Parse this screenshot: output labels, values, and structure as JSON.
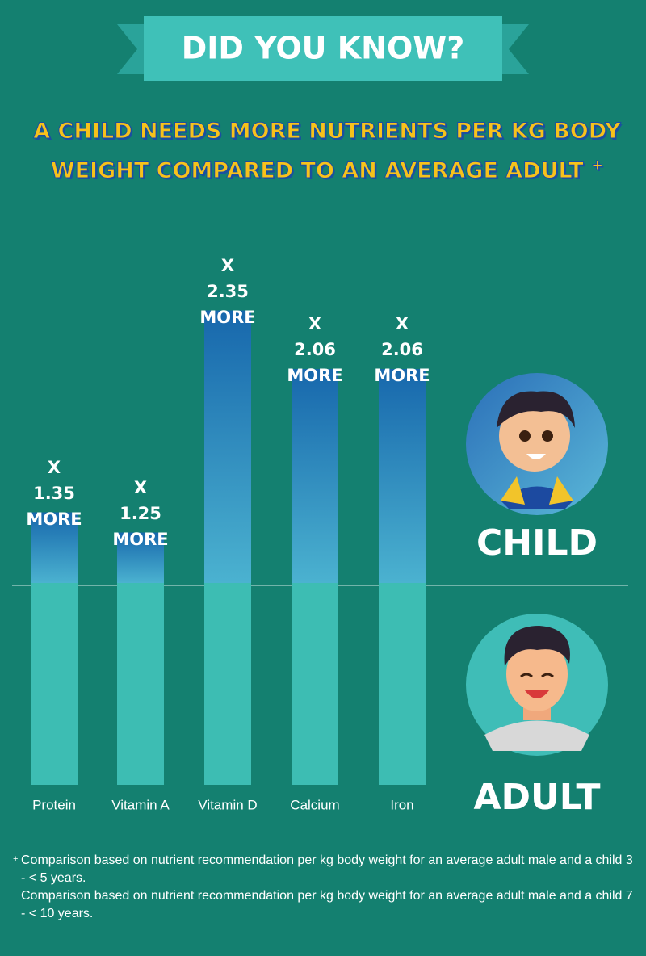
{
  "chart_data": {
    "type": "bar",
    "title": "DID YOU KNOW?",
    "subtitle": "A CHILD NEEDS MORE NUTRIENTS PER KG BODY WEIGHT COMPARED TO AN AVERAGE ADULT",
    "subtitle_mark": "+",
    "categories": [
      "Protein",
      "Vitamin A",
      "Vitamin D",
      "Calcium",
      "Iron"
    ],
    "values": [
      1.35,
      1.25,
      2.35,
      2.06,
      2.06
    ],
    "value_labels": [
      "X 1.35 MORE",
      "X 1.25 MORE",
      "X 2.35 MORE",
      "X 2.06 MORE",
      "X 2.06 MORE"
    ],
    "color": "#3dbdb3",
    "child_label": "CHILD",
    "adult_label": "ADULT",
    "footnote_mark": "+",
    "footnotes": [
      "Comparison based on nutrient recommendation per kg body weight for an average adult male and a child 3 - < 5 years.",
      "Comparison based on nutrient recommendation per kg body weight for an average adult male and a child 7 - < 10 years."
    ]
  }
}
